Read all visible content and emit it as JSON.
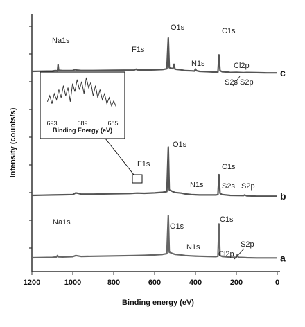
{
  "chart_data": {
    "type": "line",
    "xlabel": "Binding energy (eV)",
    "ylabel": "Intensity (counts/s)",
    "x_reversed": true,
    "xlim": [
      0,
      1200
    ],
    "x_ticks": [
      "1200",
      "1000",
      "800",
      "600",
      "400",
      "200",
      "0"
    ],
    "y_ticks_labeled": false,
    "series": [
      {
        "name": "c",
        "points": [
          [
            1200,
            52
          ],
          [
            1150,
            53
          ],
          [
            1100,
            54
          ],
          [
            1085,
            56
          ],
          [
            1075,
            55
          ],
          [
            1072,
            88
          ],
          [
            1069,
            58
          ],
          [
            1050,
            56
          ],
          [
            1000,
            57
          ],
          [
            990,
            61
          ],
          [
            980,
            59
          ],
          [
            960,
            57
          ],
          [
            900,
            57
          ],
          [
            800,
            58
          ],
          [
            700,
            59
          ],
          [
            690,
            64
          ],
          [
            686,
            60
          ],
          [
            650,
            59
          ],
          [
            600,
            60
          ],
          [
            560,
            62
          ],
          [
            540,
            66
          ],
          [
            533,
            230
          ],
          [
            528,
            72
          ],
          [
            510,
            66
          ],
          [
            505,
            90
          ],
          [
            500,
            64
          ],
          [
            470,
            60
          ],
          [
            450,
            56
          ],
          [
            420,
            55
          ],
          [
            405,
            54
          ],
          [
            400,
            65
          ],
          [
            396,
            56
          ],
          [
            380,
            52
          ],
          [
            340,
            50
          ],
          [
            300,
            48
          ],
          [
            290,
            48
          ],
          [
            285,
            140
          ],
          [
            280,
            56
          ],
          [
            270,
            50
          ],
          [
            240,
            48
          ],
          [
            230,
            46
          ],
          [
            200,
            47
          ],
          [
            165,
            45
          ],
          [
            150,
            46
          ],
          [
            100,
            45
          ],
          [
            50,
            44
          ],
          [
            0,
            44
          ]
        ]
      },
      {
        "name": "b",
        "points": [
          [
            1200,
            18
          ],
          [
            1150,
            19
          ],
          [
            1100,
            20
          ],
          [
            1050,
            21
          ],
          [
            1000,
            22
          ],
          [
            985,
            30
          ],
          [
            975,
            28
          ],
          [
            960,
            24
          ],
          [
            900,
            24
          ],
          [
            800,
            26
          ],
          [
            720,
            27
          ],
          [
            686,
            29
          ],
          [
            650,
            28
          ],
          [
            600,
            30
          ],
          [
            560,
            33
          ],
          [
            540,
            36
          ],
          [
            533,
            250
          ],
          [
            528,
            45
          ],
          [
            510,
            36
          ],
          [
            500,
            32
          ],
          [
            470,
            29
          ],
          [
            450,
            25
          ],
          [
            420,
            22
          ],
          [
            400,
            21
          ],
          [
            380,
            20
          ],
          [
            340,
            20
          ],
          [
            300,
            20
          ],
          [
            290,
            22
          ],
          [
            285,
            118
          ],
          [
            280,
            28
          ],
          [
            270,
            22
          ],
          [
            230,
            18
          ],
          [
            165,
            17
          ],
          [
            160,
            20
          ],
          [
            150,
            16
          ],
          [
            100,
            14
          ],
          [
            50,
            14
          ],
          [
            0,
            14
          ]
        ]
      },
      {
        "name": "a",
        "points": [
          [
            1200,
            10
          ],
          [
            1150,
            11
          ],
          [
            1100,
            12
          ],
          [
            1080,
            14
          ],
          [
            1075,
            22
          ],
          [
            1070,
            15
          ],
          [
            1050,
            14
          ],
          [
            1000,
            16
          ],
          [
            985,
            22
          ],
          [
            975,
            20
          ],
          [
            960,
            17
          ],
          [
            900,
            18
          ],
          [
            800,
            20
          ],
          [
            700,
            22
          ],
          [
            650,
            23
          ],
          [
            600,
            25
          ],
          [
            560,
            28
          ],
          [
            540,
            32
          ],
          [
            533,
            235
          ],
          [
            528,
            40
          ],
          [
            510,
            32
          ],
          [
            500,
            28
          ],
          [
            470,
            25
          ],
          [
            450,
            22
          ],
          [
            420,
            20
          ],
          [
            400,
            19
          ],
          [
            380,
            18
          ],
          [
            340,
            17
          ],
          [
            300,
            16
          ],
          [
            290,
            18
          ],
          [
            285,
            190
          ],
          [
            280,
            22
          ],
          [
            270,
            17
          ],
          [
            230,
            13
          ],
          [
            200,
            12
          ],
          [
            195,
            28
          ],
          [
            190,
            12
          ],
          [
            165,
            11
          ],
          [
            150,
            10
          ],
          [
            100,
            9
          ],
          [
            50,
            9
          ],
          [
            0,
            9
          ]
        ]
      }
    ],
    "peak_labels": [
      {
        "series": "c",
        "text": "Na1s"
      },
      {
        "series": "c",
        "text": "F1s"
      },
      {
        "series": "c",
        "text": "O1s"
      },
      {
        "series": "c",
        "text": "N1s"
      },
      {
        "series": "c",
        "text": "C1s"
      },
      {
        "series": "c",
        "text": "Cl2p"
      },
      {
        "series": "c",
        "text": "S2s"
      },
      {
        "series": "c",
        "text": "S2p"
      },
      {
        "series": "b",
        "text": "F1s"
      },
      {
        "series": "b",
        "text": "O1s"
      },
      {
        "series": "b",
        "text": "N1s"
      },
      {
        "series": "b",
        "text": "C1s"
      },
      {
        "series": "b",
        "text": "S2s"
      },
      {
        "series": "b",
        "text": "S2p"
      },
      {
        "series": "a",
        "text": "Na1s"
      },
      {
        "series": "a",
        "text": "O1s"
      },
      {
        "series": "a",
        "text": "C1s"
      },
      {
        "series": "a",
        "text": "N1s"
      },
      {
        "series": "a",
        "text": "Cl2p"
      },
      {
        "series": "a",
        "text": "S2p"
      }
    ],
    "inset": {
      "xlabel": "Binding Energy (eV)",
      "x_reversed": true,
      "x_ticks": [
        "693",
        "689",
        "685"
      ],
      "xlim": [
        684,
        694
      ],
      "values": [
        [
          693.6,
          0.4
        ],
        [
          693.3,
          0.55
        ],
        [
          693.0,
          0.35
        ],
        [
          692.7,
          0.6
        ],
        [
          692.4,
          0.45
        ],
        [
          692.1,
          0.7
        ],
        [
          691.8,
          0.5
        ],
        [
          691.5,
          0.8
        ],
        [
          691.2,
          0.55
        ],
        [
          690.9,
          0.75
        ],
        [
          690.6,
          0.4
        ],
        [
          690.3,
          0.85
        ],
        [
          690.0,
          0.65
        ],
        [
          689.7,
          0.95
        ],
        [
          689.4,
          0.7
        ],
        [
          689.1,
          0.9
        ],
        [
          688.8,
          0.6
        ],
        [
          688.5,
          1.0
        ],
        [
          688.2,
          0.75
        ],
        [
          687.9,
          0.88
        ],
        [
          687.6,
          0.55
        ],
        [
          687.3,
          0.8
        ],
        [
          687.0,
          0.5
        ],
        [
          686.7,
          0.7
        ],
        [
          686.4,
          0.45
        ],
        [
          686.1,
          0.6
        ],
        [
          685.8,
          0.35
        ],
        [
          685.5,
          0.5
        ],
        [
          685.2,
          0.3
        ],
        [
          684.9,
          0.42
        ],
        [
          684.6,
          0.28
        ]
      ]
    }
  }
}
